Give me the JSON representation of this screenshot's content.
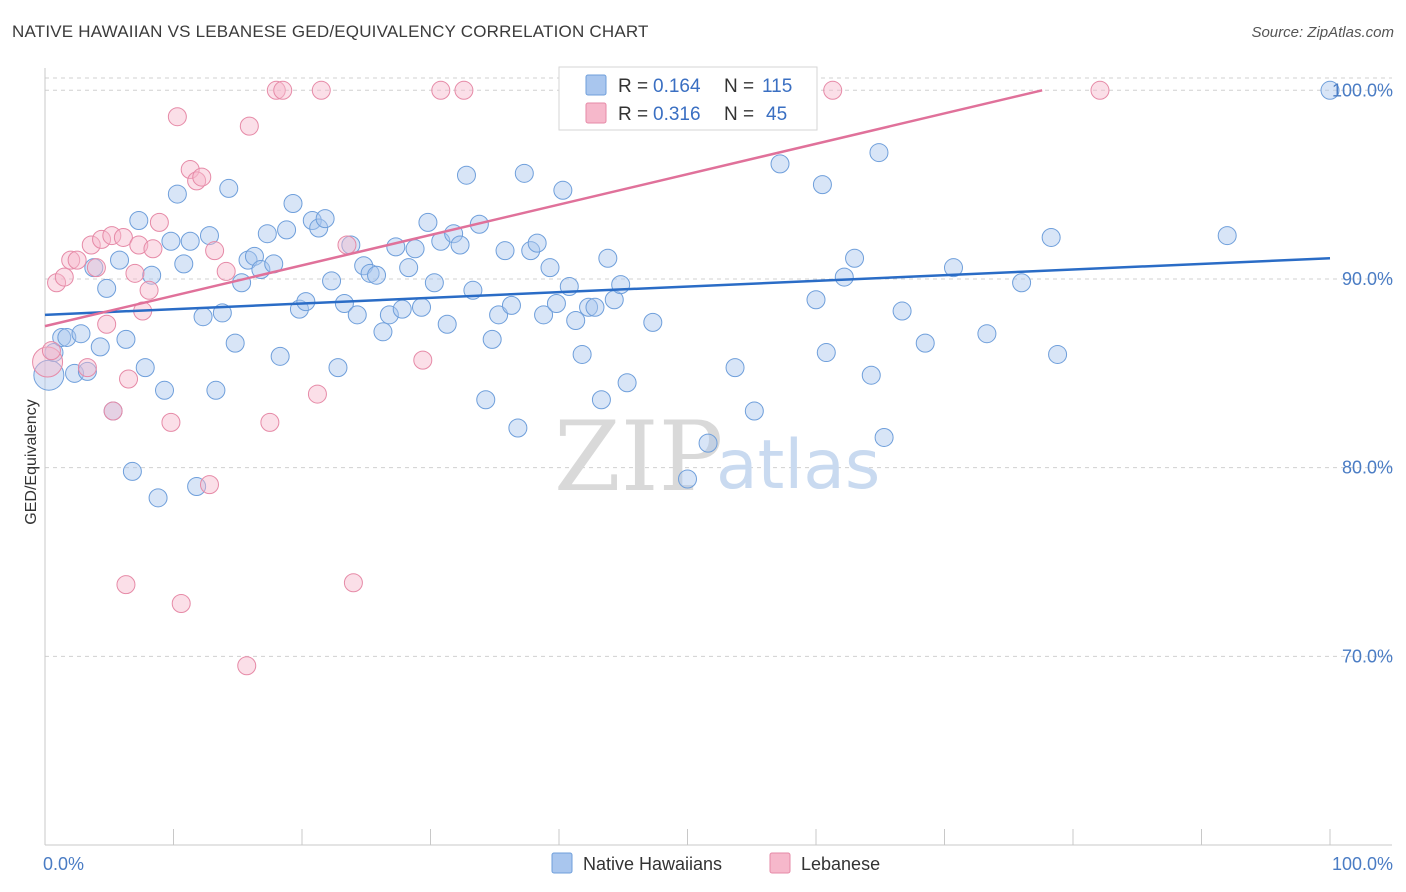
{
  "title": "NATIVE HAWAIIAN VS LEBANESE GED/EQUIVALENCY CORRELATION CHART",
  "source": "Source: ZipAtlas.com",
  "watermark": {
    "zip": "ZIP",
    "atlas": "atlas"
  },
  "colors": {
    "blue_fill": "#a9c6ee",
    "blue_stroke": "#6f9fdb",
    "blue_line": "#2a6cc6",
    "pink_fill": "#f6b8cb",
    "pink_stroke": "#e68aa7",
    "pink_line": "#e0719a",
    "grid": "#d0d0d0",
    "tick_text": "#4a7cc4"
  },
  "legend": {
    "rows": [
      {
        "r_label": "R =",
        "r_value": "0.164",
        "n_label": "N =",
        "n_value": "115"
      },
      {
        "r_label": "R =",
        "r_value": "0.316",
        "n_label": "N =",
        "n_value": "45"
      }
    ]
  },
  "chart_data": {
    "type": "scatter",
    "title": "NATIVE HAWAIIAN VS LEBANESE GED/EQUIVALENCY CORRELATION CHART",
    "xlabel": "",
    "ylabel": "GED/Equivalency",
    "xlim": [
      0,
      100
    ],
    "ylim": [
      60.0,
      101.5
    ],
    "x_tick_labels": [
      "0.0%",
      "100.0%"
    ],
    "y_ticks": [
      70,
      80,
      90,
      100
    ],
    "y_tick_labels": [
      "70.0%",
      "80.0%",
      "90.0%",
      "100.0%"
    ],
    "grid": "horizontal dashed",
    "legend_position": "top-center",
    "bottom_legend_position": "bottom-center",
    "series": [
      {
        "name": "Native Hawaiians",
        "color": "blue",
        "trend": {
          "x": [
            0,
            100
          ],
          "y": [
            88.1,
            91.1
          ]
        },
        "points": [
          [
            0.3,
            84.9
          ],
          [
            0.7,
            86.1
          ],
          [
            1.3,
            86.9
          ],
          [
            1.7,
            86.9
          ],
          [
            2.3,
            85.0
          ],
          [
            2.8,
            87.1
          ],
          [
            3.3,
            85.1
          ],
          [
            3.8,
            90.6
          ],
          [
            4.3,
            86.4
          ],
          [
            4.8,
            89.5
          ],
          [
            5.3,
            83.0
          ],
          [
            5.8,
            91.0
          ],
          [
            6.3,
            86.8
          ],
          [
            6.8,
            79.8
          ],
          [
            7.3,
            93.1
          ],
          [
            7.8,
            85.3
          ],
          [
            8.3,
            90.2
          ],
          [
            8.8,
            78.4
          ],
          [
            9.3,
            84.1
          ],
          [
            9.8,
            92.0
          ],
          [
            10.3,
            94.5
          ],
          [
            10.8,
            90.8
          ],
          [
            11.3,
            92.0
          ],
          [
            11.8,
            79.0
          ],
          [
            12.3,
            88.0
          ],
          [
            12.8,
            92.3
          ],
          [
            13.3,
            84.1
          ],
          [
            13.8,
            88.2
          ],
          [
            14.3,
            94.8
          ],
          [
            14.8,
            86.6
          ],
          [
            15.3,
            89.8
          ],
          [
            15.8,
            91.0
          ],
          [
            16.3,
            91.2
          ],
          [
            16.8,
            90.5
          ],
          [
            17.3,
            92.4
          ],
          [
            17.8,
            90.8
          ],
          [
            18.3,
            85.9
          ],
          [
            18.8,
            92.6
          ],
          [
            19.3,
            94.0
          ],
          [
            19.8,
            88.4
          ],
          [
            20.3,
            88.8
          ],
          [
            20.8,
            93.1
          ],
          [
            21.3,
            92.7
          ],
          [
            21.8,
            93.2
          ],
          [
            22.3,
            89.9
          ],
          [
            22.8,
            85.3
          ],
          [
            23.3,
            88.7
          ],
          [
            23.8,
            91.8
          ],
          [
            24.3,
            88.1
          ],
          [
            24.8,
            90.7
          ],
          [
            25.3,
            90.3
          ],
          [
            25.8,
            90.2
          ],
          [
            26.3,
            87.2
          ],
          [
            26.8,
            88.1
          ],
          [
            27.3,
            91.7
          ],
          [
            27.8,
            88.4
          ],
          [
            28.3,
            90.6
          ],
          [
            28.8,
            91.6
          ],
          [
            29.3,
            88.5
          ],
          [
            29.8,
            93.0
          ],
          [
            30.3,
            89.8
          ],
          [
            30.8,
            92.0
          ],
          [
            31.3,
            87.6
          ],
          [
            31.8,
            92.4
          ],
          [
            32.3,
            91.8
          ],
          [
            32.8,
            95.5
          ],
          [
            33.3,
            89.4
          ],
          [
            33.8,
            92.9
          ],
          [
            34.3,
            83.6
          ],
          [
            34.8,
            86.8
          ],
          [
            35.3,
            88.1
          ],
          [
            35.8,
            91.5
          ],
          [
            36.3,
            88.6
          ],
          [
            36.8,
            82.1
          ],
          [
            37.3,
            95.6
          ],
          [
            37.8,
            91.5
          ],
          [
            38.3,
            91.9
          ],
          [
            38.8,
            88.1
          ],
          [
            39.3,
            90.6
          ],
          [
            39.8,
            88.7
          ],
          [
            40.3,
            94.7
          ],
          [
            40.8,
            89.6
          ],
          [
            41.3,
            87.8
          ],
          [
            41.8,
            86.0
          ],
          [
            42.3,
            88.5
          ],
          [
            42.8,
            88.5
          ],
          [
            43.3,
            83.6
          ],
          [
            43.8,
            91.1
          ],
          [
            44.3,
            88.9
          ],
          [
            44.8,
            89.7
          ],
          [
            45.3,
            84.5
          ],
          [
            47.3,
            87.7
          ],
          [
            50.0,
            79.4
          ],
          [
            51.6,
            81.3
          ],
          [
            53.7,
            85.3
          ],
          [
            55.2,
            83.0
          ],
          [
            57.2,
            96.1
          ],
          [
            58.5,
            100.0
          ],
          [
            60.0,
            88.9
          ],
          [
            60.5,
            95.0
          ],
          [
            60.8,
            86.1
          ],
          [
            62.2,
            90.1
          ],
          [
            63.0,
            91.1
          ],
          [
            64.3,
            84.9
          ],
          [
            64.9,
            96.7
          ],
          [
            65.3,
            81.6
          ],
          [
            66.7,
            88.3
          ],
          [
            68.5,
            86.6
          ],
          [
            70.7,
            90.6
          ],
          [
            73.3,
            87.1
          ],
          [
            76.0,
            89.8
          ],
          [
            78.8,
            86.0
          ],
          [
            78.3,
            92.2
          ],
          [
            92.0,
            92.3
          ],
          [
            100.0,
            100.0
          ]
        ]
      },
      {
        "name": "Lebanese",
        "color": "pink",
        "trend": {
          "x": [
            0,
            77.6
          ],
          "y": [
            87.5,
            100.0
          ]
        },
        "points": [
          [
            0.2,
            85.6
          ],
          [
            0.5,
            86.2
          ],
          [
            0.9,
            89.8
          ],
          [
            1.5,
            90.1
          ],
          [
            2.0,
            91.0
          ],
          [
            2.5,
            91.0
          ],
          [
            3.3,
            85.3
          ],
          [
            3.6,
            91.8
          ],
          [
            4.0,
            90.6
          ],
          [
            4.4,
            92.1
          ],
          [
            4.8,
            87.6
          ],
          [
            5.2,
            92.3
          ],
          [
            5.3,
            83.0
          ],
          [
            6.1,
            92.2
          ],
          [
            6.3,
            73.8
          ],
          [
            6.5,
            84.7
          ],
          [
            7.0,
            90.3
          ],
          [
            7.3,
            91.8
          ],
          [
            7.6,
            88.3
          ],
          [
            8.1,
            89.4
          ],
          [
            8.4,
            91.6
          ],
          [
            8.9,
            93.0
          ],
          [
            9.8,
            82.4
          ],
          [
            10.3,
            98.6
          ],
          [
            10.6,
            72.8
          ],
          [
            11.3,
            95.8
          ],
          [
            11.8,
            95.2
          ],
          [
            12.2,
            95.4
          ],
          [
            12.8,
            79.1
          ],
          [
            13.2,
            91.5
          ],
          [
            14.1,
            90.4
          ],
          [
            15.7,
            69.5
          ],
          [
            15.9,
            98.1
          ],
          [
            17.5,
            82.4
          ],
          [
            18.0,
            100.0
          ],
          [
            18.5,
            100.0
          ],
          [
            21.2,
            83.9
          ],
          [
            21.5,
            100.0
          ],
          [
            23.5,
            91.8
          ],
          [
            24.0,
            73.9
          ],
          [
            29.4,
            85.7
          ],
          [
            30.8,
            100.0
          ],
          [
            32.6,
            100.0
          ],
          [
            61.3,
            100.0
          ],
          [
            82.1,
            100.0
          ]
        ]
      }
    ]
  }
}
